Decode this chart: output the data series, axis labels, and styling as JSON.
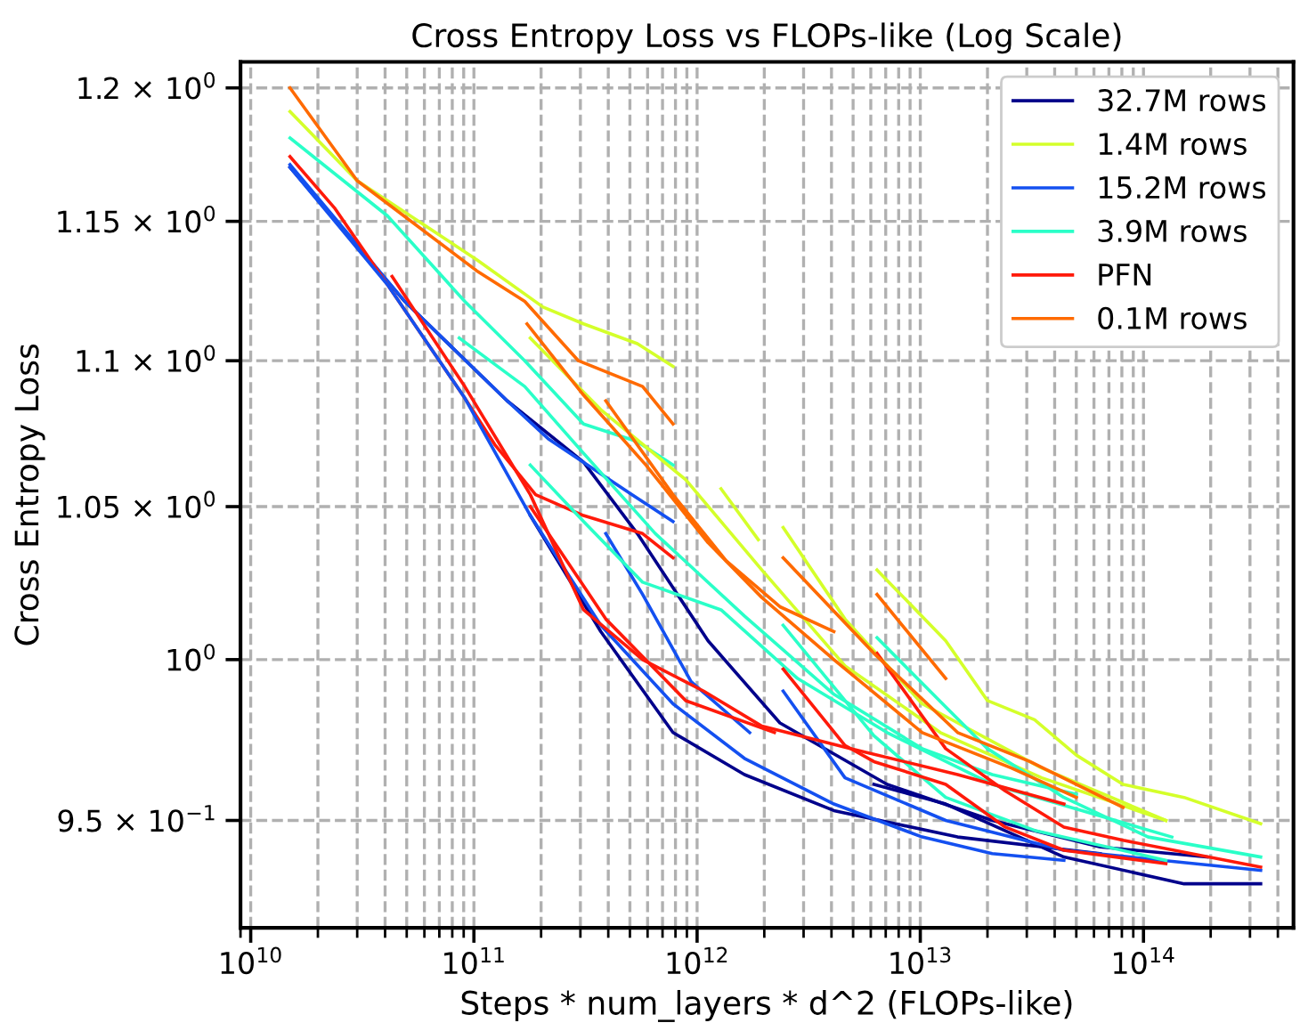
{
  "chart_data": {
    "type": "line",
    "title": "Cross Entropy Loss vs FLOPs-like (Log Scale)",
    "xlabel": "Steps * num_layers * d^2 (FLOPs-like)",
    "ylabel": "Cross Entropy Loss",
    "log": "xy",
    "grid": true,
    "legend": "top right",
    "xlim": [
      9000000000.0,
      470000000000000.0
    ],
    "ylim": [
      0.918,
      1.21
    ],
    "xticks": [
      {
        "value": 10000000000.0,
        "label": "10$^{10}$"
      },
      {
        "value": 100000000000.0,
        "label": "10$^{11}$"
      },
      {
        "value": 1000000000000.0,
        "label": "10$^{12}$"
      },
      {
        "value": 10000000000000.0,
        "label": "10$^{13}$"
      },
      {
        "value": 100000000000000.0,
        "label": "10$^{14}$"
      }
    ],
    "yticks": [
      {
        "value": 0.95,
        "label": "9.5 × 10$^{−1}$"
      },
      {
        "value": 1.0,
        "label": "10$^{0}$"
      },
      {
        "value": 1.05,
        "label": "1.05 × 10$^{0}$"
      },
      {
        "value": 1.1,
        "label": "1.1 × 10$^{0}$"
      },
      {
        "value": 1.15,
        "label": "1.15 × 10$^{0}$"
      },
      {
        "value": 1.2,
        "label": "1.2 × 10$^{0}$"
      }
    ],
    "series": [
      {
        "name": "32.7M rows",
        "color": "#00008b",
        "x": [
          15000000000.0,
          49000000000.0,
          141000000000.0,
          310000000000.0,
          540000000000.0,
          1120000000000.0,
          2350000000000.0,
          7100000000000.0,
          21000000000000.0,
          64000000000000.0,
          193000000000000.0
        ],
        "values": [
          1.17,
          1.121,
          1.086,
          1.065,
          1.041,
          1.006,
          0.98,
          0.961,
          0.95,
          0.942,
          0.939
        ]
      },
      {
        "name": "1.4M rows",
        "color": "#d4ff2a",
        "x": [
          15000000000.0,
          30000000000.0,
          103000000000.0,
          204000000000.0,
          310000000000.0,
          540000000000.0,
          780000000000.0
        ],
        "values": [
          1.191,
          1.165,
          1.136,
          1.119,
          1.113,
          1.106,
          1.098
        ]
      },
      {
        "name": "15.2M rows",
        "color": "#1450f0",
        "x": [
          15000000000.0,
          49000000000.0,
          141000000000.0,
          215000000000.0,
          510000000000.0,
          780000000000.0
        ],
        "values": [
          1.171,
          1.121,
          1.086,
          1.073,
          1.054,
          1.045
        ]
      },
      {
        "name": "3.9M rows",
        "color": "#2affc8",
        "x": [
          15000000000.0,
          41000000000.0,
          91000000000.0,
          169000000000.0,
          310000000000.0,
          540000000000.0,
          780000000000.0
        ],
        "values": [
          1.181,
          1.152,
          1.121,
          1.1,
          1.078,
          1.072,
          1.064
        ]
      },
      {
        "name": "PFN",
        "color": "#ff1a0a",
        "x": [
          15000000000.0,
          23700000000.0,
          41000000000.0,
          91000000000.0,
          124000000000.0,
          189000000000.0,
          310000000000.0,
          570000000000.0,
          780000000000.0
        ],
        "values": [
          1.174,
          1.155,
          1.127,
          1.087,
          1.071,
          1.054,
          1.047,
          1.041,
          1.033
        ]
      },
      {
        "name": "0.1M rows",
        "color": "#ff6a00",
        "x": [
          15000000000.0,
          30000000000.0,
          103000000000.0,
          169000000000.0,
          294000000000.0,
          570000000000.0,
          780000000000.0
        ],
        "values": [
          1.2,
          1.165,
          1.132,
          1.121,
          1.1,
          1.091,
          1.078
        ]
      },
      {
        "color": "#00008b",
        "x": [
          179000000000.0,
          370000000000.0,
          780000000000.0,
          1630000000000.0,
          4100000000000.0,
          14700000000000.0,
          64000000000000.0
        ],
        "values": [
          1.047,
          1.009,
          0.977,
          0.964,
          0.953,
          0.945,
          0.94
        ]
      },
      {
        "color": "#00008b",
        "x": [
          6200000000000.0,
          13000000000000.0,
          44000000000000.0,
          152000000000000.0,
          335000000000000.0
        ],
        "values": [
          0.961,
          0.955,
          0.939,
          0.931,
          0.931
        ]
      },
      {
        "color": "#d4ff2a",
        "x": [
          179000000000.0,
          370000000000.0,
          890000000000.0,
          1950000000000.0,
          4600000000000.0,
          12300000000000.0,
          35000000000000.0,
          126000000000000.0
        ],
        "values": [
          1.108,
          1.083,
          1.059,
          1.029,
          0.998,
          0.977,
          0.963,
          0.95
        ]
      },
      {
        "color": "#d4ff2a",
        "x": [
          1280000000000.0,
          1880000000000.0
        ],
        "values": [
          1.056,
          1.039
        ]
      },
      {
        "color": "#d4ff2a",
        "x": [
          6400000000000.0,
          13000000000000.0,
          20000000000000.0,
          32500000000000.0,
          50000000000000.0,
          81000000000000.0,
          152000000000000.0,
          335000000000000.0
        ],
        "values": [
          1.029,
          1.006,
          0.987,
          0.981,
          0.97,
          0.961,
          0.957,
          0.949
        ]
      },
      {
        "color": "#d4ff2a",
        "x": [
          2430000000000.0,
          4600000000000.0,
          10200000000000.0,
          35000000000000.0,
          126000000000000.0
        ],
        "values": [
          1.043,
          1.013,
          0.986,
          0.966,
          0.95
        ]
      },
      {
        "color": "#1450f0",
        "x": [
          15000000000.0,
          41000000000.0,
          91000000000.0,
          179000000000.0,
          370000000000.0,
          780000000000.0,
          1630000000000.0,
          4100000000000.0,
          10200000000000.0,
          21000000000000.0,
          44000000000000.0
        ],
        "values": [
          1.17,
          1.127,
          1.087,
          1.047,
          1.011,
          0.986,
          0.969,
          0.955,
          0.945,
          0.94,
          0.938
        ]
      },
      {
        "color": "#1450f0",
        "x": [
          390000000000.0,
          570000000000.0,
          940000000000.0,
          1720000000000.0
        ],
        "values": [
          1.041,
          1.021,
          0.993,
          0.977
        ]
      },
      {
        "color": "#1450f0",
        "x": [
          2430000000000.0,
          4600000000000.0,
          13000000000000.0,
          44000000000000.0,
          335000000000000.0
        ],
        "values": [
          0.99,
          0.963,
          0.95,
          0.941,
          0.935
        ]
      },
      {
        "color": "#2affc8",
        "x": [
          86000000000.0,
          169000000000.0,
          310000000000.0,
          650000000000.0,
          1630000000000.0,
          4100000000000.0,
          10200000000000.0,
          21000000000000.0,
          50000000000000.0
        ],
        "values": [
          1.108,
          1.091,
          1.068,
          1.041,
          1.014,
          0.989,
          0.972,
          0.964,
          0.958
        ]
      },
      {
        "color": "#2affc8",
        "x": [
          179000000000.0,
          310000000000.0,
          570000000000.0,
          1280000000000.0,
          2820000000000.0,
          7100000000000.0,
          21000000000000.0,
          134000000000000.0
        ],
        "values": [
          1.064,
          1.045,
          1.025,
          1.016,
          0.994,
          0.977,
          0.961,
          0.945
        ]
      },
      {
        "color": "#2affc8",
        "x": [
          6400000000000.0,
          13000000000000.0,
          20000000000000.0,
          44000000000000.0,
          105000000000000.0,
          335000000000000.0
        ],
        "values": [
          1.007,
          0.985,
          0.972,
          0.957,
          0.945,
          0.939
        ]
      },
      {
        "color": "#2affc8",
        "x": [
          2430000000000.0,
          6200000000000.0,
          13000000000000.0,
          32500000000000.0,
          126000000000000.0
        ],
        "values": [
          1.011,
          0.976,
          0.957,
          0.947,
          0.938
        ]
      },
      {
        "color": "#ff1a0a",
        "x": [
          179000000000.0,
          390000000000.0,
          890000000000.0,
          2220000000000.0
        ],
        "values": [
          1.05,
          1.013,
          0.987,
          0.977
        ]
      },
      {
        "color": "#ff1a0a",
        "x": [
          43000000000.0,
          91000000000.0,
          179000000000.0,
          310000000000.0,
          570000000000.0,
          1070000000000.0,
          1950000000000.0,
          4900000000000.0,
          14700000000000.0,
          44000000000000.0
        ],
        "values": [
          1.13,
          1.091,
          1.054,
          1.016,
          1.0,
          0.99,
          0.979,
          0.972,
          0.964,
          0.955
        ]
      },
      {
        "color": "#ff1a0a",
        "x": [
          2430000000000.0,
          4600000000000.0,
          6200000000000.0,
          13000000000000.0,
          24000000000000.0,
          44000000000000.0,
          126000000000000.0
        ],
        "values": [
          0.997,
          0.973,
          0.968,
          0.961,
          0.948,
          0.941,
          0.937
        ]
      },
      {
        "color": "#ff1a0a",
        "x": [
          6400000000000.0,
          13000000000000.0,
          24000000000000.0,
          44000000000000.0,
          81000000000000.0,
          335000000000000.0
        ],
        "values": [
          1.002,
          0.972,
          0.959,
          0.948,
          0.944,
          0.936
        ]
      },
      {
        "color": "#ff6a00",
        "x": [
          173000000000.0,
          310000000000.0,
          590000000000.0,
          1120000000000.0,
          1950000000000.0,
          4100000000000.0,
          10200000000000.0,
          25600000000000.0,
          50000000000000.0
        ],
        "values": [
          1.113,
          1.088,
          1.064,
          1.038,
          1.02,
          1.0,
          0.977,
          0.966,
          0.957
        ]
      },
      {
        "color": "#ff6a00",
        "x": [
          390000000000.0,
          780000000000.0,
          1350000000000.0,
          2350000000000.0,
          4100000000000.0
        ],
        "values": [
          1.086,
          1.054,
          1.032,
          1.017,
          1.009
        ]
      },
      {
        "color": "#ff6a00",
        "x": [
          2430000000000.0,
          6200000000000.0,
          14700000000000.0,
          31000000000000.0,
          81000000000000.0
        ],
        "values": [
          1.033,
          1.002,
          0.977,
          0.968,
          0.954
        ]
      },
      {
        "color": "#ff6a00",
        "x": [
          6400000000000.0,
          13000000000000.0
        ],
        "values": [
          1.021,
          0.994
        ]
      }
    ]
  }
}
